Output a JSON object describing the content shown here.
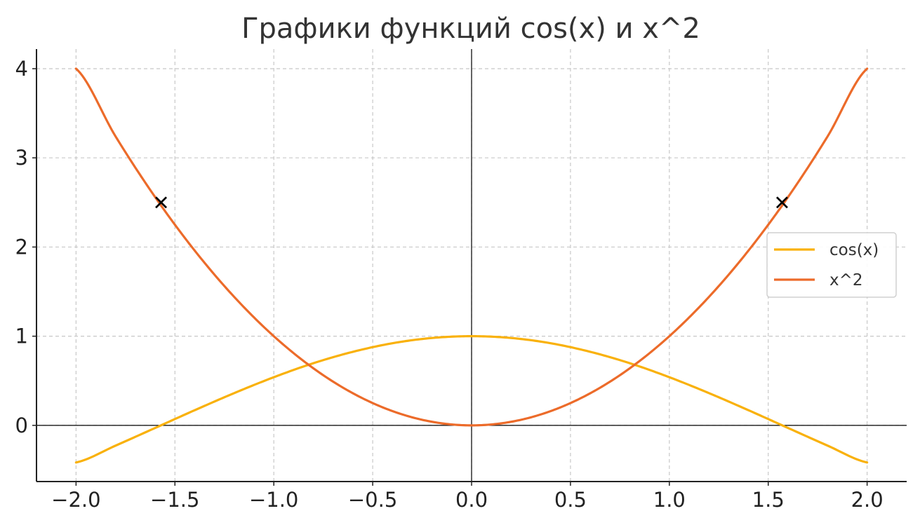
{
  "chart_data": {
    "type": "line",
    "title": "Графики функций cos(x) и x^2",
    "xlabel": "",
    "ylabel": "",
    "xlim": [
      -2.2,
      2.2
    ],
    "ylim": [
      -0.63,
      4.22
    ],
    "x_ticks": [
      {
        "value": -2.0,
        "label": "−2.0"
      },
      {
        "value": -1.5,
        "label": "−1.5"
      },
      {
        "value": -1.0,
        "label": "−1.0"
      },
      {
        "value": -0.5,
        "label": "−0.5"
      },
      {
        "value": 0.0,
        "label": "0.0"
      },
      {
        "value": 0.5,
        "label": "0.5"
      },
      {
        "value": 1.0,
        "label": "1.0"
      },
      {
        "value": 1.5,
        "label": "1.5"
      },
      {
        "value": 2.0,
        "label": "2.0"
      }
    ],
    "y_ticks": [
      {
        "value": 0,
        "label": "0"
      },
      {
        "value": 1,
        "label": "1"
      },
      {
        "value": 2,
        "label": "2"
      },
      {
        "value": 3,
        "label": "3"
      },
      {
        "value": 4,
        "label": "4"
      }
    ],
    "grid": true,
    "grid_style": "dashed",
    "zero_lines": true,
    "legend_position": "center-right",
    "series": [
      {
        "name": "cos(x)",
        "color": "#F9B10B",
        "x": [
          -2.0,
          -1.8,
          -1.6,
          -1.4,
          -1.2,
          -1.0,
          -0.8,
          -0.6,
          -0.4,
          -0.2,
          0.0,
          0.2,
          0.4,
          0.6,
          0.8,
          1.0,
          1.2,
          1.4,
          1.6,
          1.8,
          2.0
        ],
        "y": [
          -0.416,
          -0.227,
          -0.029,
          0.17,
          0.362,
          0.54,
          0.697,
          0.825,
          0.921,
          0.98,
          1.0,
          0.98,
          0.921,
          0.825,
          0.697,
          0.54,
          0.362,
          0.17,
          -0.029,
          -0.227,
          -0.416
        ]
      },
      {
        "name": "x^2",
        "color": "#EC6B2A",
        "x": [
          -2.0,
          -1.8,
          -1.6,
          -1.4,
          -1.2,
          -1.0,
          -0.8,
          -0.6,
          -0.4,
          -0.2,
          0.0,
          0.2,
          0.4,
          0.6,
          0.8,
          1.0,
          1.2,
          1.4,
          1.6,
          1.8,
          2.0
        ],
        "y": [
          4.0,
          3.24,
          2.56,
          1.96,
          1.44,
          1.0,
          0.64,
          0.36,
          0.16,
          0.04,
          0.0,
          0.04,
          0.16,
          0.36,
          0.64,
          1.0,
          1.44,
          1.96,
          2.56,
          3.24,
          4.0
        ]
      }
    ],
    "markers": [
      {
        "x": -1.57,
        "y": 2.5,
        "symbol": "x",
        "color": "#000000"
      },
      {
        "x": 1.57,
        "y": 2.5,
        "symbol": "x",
        "color": "#000000"
      }
    ]
  }
}
